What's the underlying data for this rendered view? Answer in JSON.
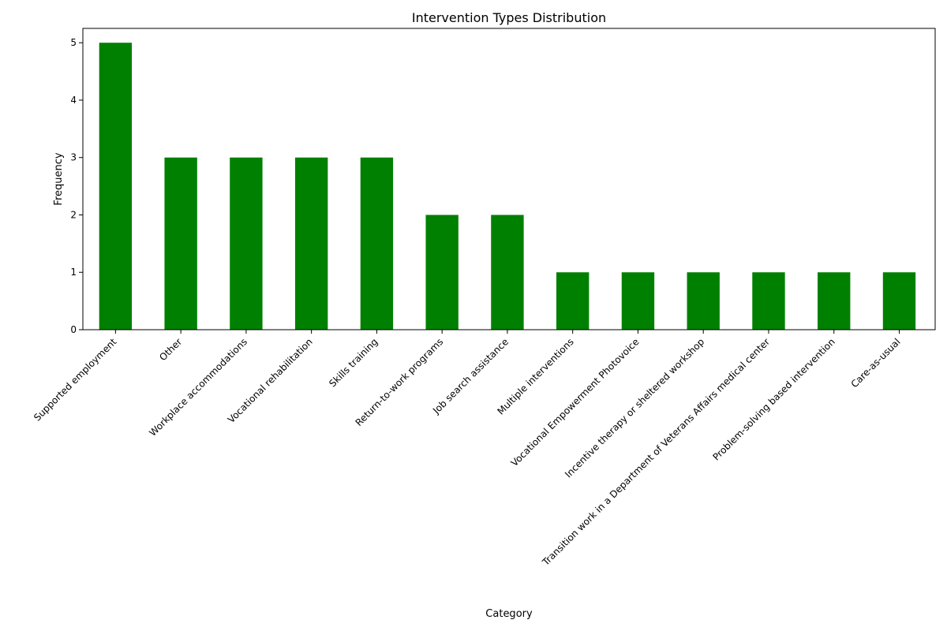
{
  "chart_data": {
    "type": "bar",
    "title": "Intervention Types Distribution",
    "xlabel": "Category",
    "ylabel": "Frequency",
    "categories": [
      "Supported employment",
      "Other",
      "Workplace accommodations",
      "Vocational rehabilitation",
      "Skills training",
      "Return-to-work programs",
      "Job search assistance",
      "Multiple interventions",
      "Vocational Empowerment Photovoice",
      "Incentive therapy or sheltered workshop",
      "Transition work in a Department of Veterans Affairs medical center",
      "Problem-solving based intervention",
      "Care-as-usual"
    ],
    "values": [
      5,
      3,
      3,
      3,
      3,
      2,
      2,
      1,
      1,
      1,
      1,
      1,
      1
    ],
    "ylim": [
      0,
      5.25
    ],
    "yticks": [
      0,
      1,
      2,
      3,
      4,
      5
    ],
    "grid": false,
    "bar_color": "#008000"
  }
}
